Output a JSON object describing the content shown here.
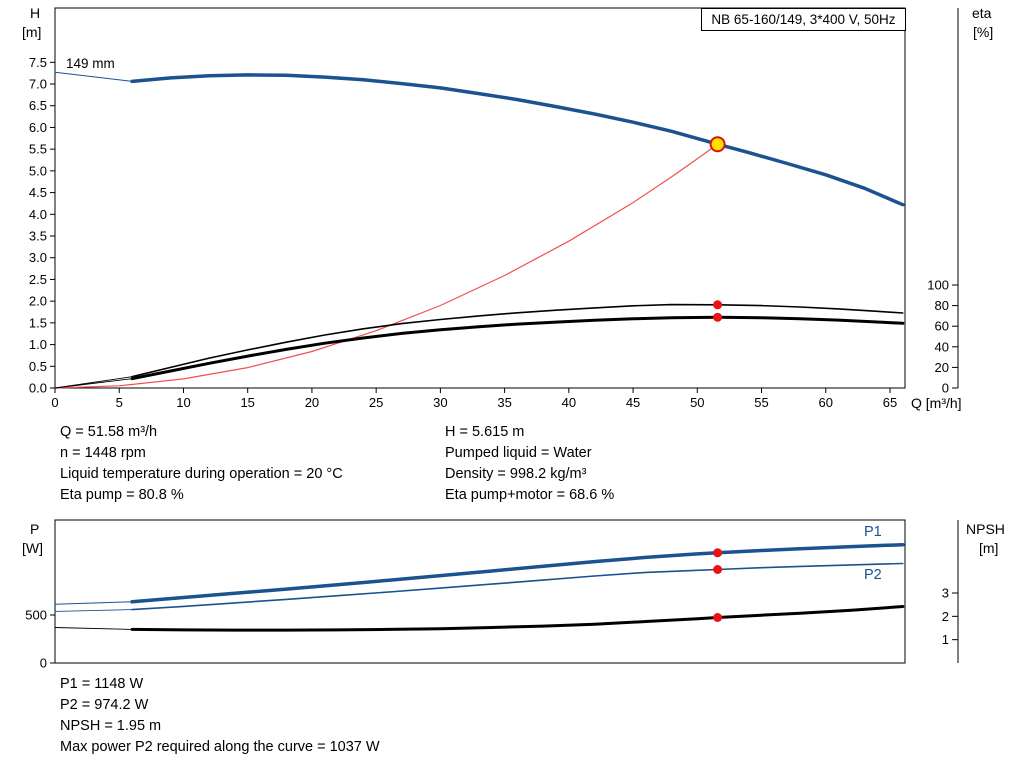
{
  "colors": {
    "curve_blue": "#1b5290",
    "curve_black": "#000000",
    "duty_line_red": "#f05050",
    "dot_red": "#ee1111",
    "duty_fill_yellow": "#ffe200",
    "duty_ring_red": "#dd1111"
  },
  "info_top": {
    "left": [
      "Q = 51.58 m³/h",
      "n = 1448 rpm",
      "Liquid temperature during operation = 20 °C",
      "Eta pump = 80.8 %"
    ],
    "right": [
      "H = 5.615 m",
      "Pumped liquid = Water",
      "Density = 998.2 kg/m³",
      "Eta pump+motor = 68.6 %"
    ]
  },
  "info_bottom": [
    "P1 = 1148 W",
    "P2 = 974.2 W",
    "NPSH = 1.95 m",
    "Max power P2 required along the curve = 1037 W"
  ],
  "chart_data": [
    {
      "type": "line",
      "id": "qh",
      "title": "NB 65-160/149, 3*400 V, 50Hz",
      "x_axis": {
        "label": "Q [m³/h]",
        "range": [
          0,
          66.2
        ],
        "ticks": [
          "0",
          "5",
          "10",
          "15",
          "20",
          "25",
          "30",
          "35",
          "40",
          "45",
          "50",
          "55",
          "60",
          "65"
        ]
      },
      "y_left": {
        "name": "H",
        "unit": "[m]",
        "range": [
          0,
          8.75
        ],
        "ticks": [
          "0.0",
          "0.5",
          "1.0",
          "1.5",
          "2.0",
          "2.5",
          "3.0",
          "3.5",
          "4.0",
          "4.5",
          "5.0",
          "5.5",
          "6.0",
          "6.5",
          "7.0",
          "7.5"
        ]
      },
      "y_right": {
        "name": "eta",
        "unit": "[%]",
        "range": [
          0,
          100
        ],
        "ticks": [
          "0",
          "20",
          "40",
          "60",
          "80",
          "100"
        ]
      },
      "grid": false,
      "annotations": [
        {
          "text": "149 mm"
        }
      ],
      "series": [
        {
          "name": "Duty line",
          "axis": "left",
          "color": "duty_line_red",
          "width": 1.2,
          "points": [
            [
              0,
              0
            ],
            [
              5,
              0.05
            ],
            [
              10,
              0.21
            ],
            [
              15,
              0.47
            ],
            [
              20,
              0.84
            ],
            [
              25,
              1.32
            ],
            [
              30,
              1.9
            ],
            [
              35,
              2.59
            ],
            [
              40,
              3.38
            ],
            [
              45,
              4.27
            ],
            [
              48,
              4.86
            ],
            [
              50,
              5.28
            ],
            [
              51.58,
              5.615
            ]
          ]
        },
        {
          "name": "Eta pump lead",
          "axis": "right",
          "color": "curve_black",
          "width": 0.9,
          "points": [
            [
              0,
              0
            ],
            [
              6,
              11
            ]
          ]
        },
        {
          "name": "Eta pump",
          "axis": "right",
          "color": "curve_black",
          "width": 1.6,
          "points": [
            [
              6,
              11
            ],
            [
              9,
              20
            ],
            [
              12,
              29
            ],
            [
              15,
              37
            ],
            [
              18,
              44.5
            ],
            [
              21,
              51.5
            ],
            [
              24,
              57.5
            ],
            [
              27,
              62.5
            ],
            [
              30,
              66.5
            ],
            [
              33,
              70
            ],
            [
              36,
              73
            ],
            [
              39,
              75.5
            ],
            [
              42,
              77.8
            ],
            [
              45,
              79.8
            ],
            [
              48,
              81.0
            ],
            [
              51.58,
              80.8
            ],
            [
              55,
              80.0
            ],
            [
              58,
              78.6
            ],
            [
              61,
              76.8
            ],
            [
              64,
              74.5
            ],
            [
              66,
              72.8
            ]
          ]
        },
        {
          "name": "Eta pump+motor lead",
          "axis": "right",
          "color": "curve_black",
          "width": 0.9,
          "points": [
            [
              0,
              0
            ],
            [
              6,
              9
            ]
          ]
        },
        {
          "name": "Eta pump+motor",
          "axis": "right",
          "color": "curve_black",
          "width": 3,
          "points": [
            [
              6,
              9
            ],
            [
              9,
              16.5
            ],
            [
              12,
              24
            ],
            [
              15,
              31
            ],
            [
              18,
              37.5
            ],
            [
              21,
              43.5
            ],
            [
              24,
              48.5
            ],
            [
              27,
              53
            ],
            [
              30,
              56.5
            ],
            [
              33,
              59.5
            ],
            [
              36,
              62
            ],
            [
              39,
              64
            ],
            [
              42,
              65.8
            ],
            [
              45,
              67.2
            ],
            [
              48,
              68.3
            ],
            [
              51.58,
              68.6
            ],
            [
              55,
              68.2
            ],
            [
              58,
              67.3
            ],
            [
              61,
              65.9
            ],
            [
              64,
              64.1
            ],
            [
              66,
              62.8
            ]
          ]
        },
        {
          "name": "H curve lead",
          "axis": "left",
          "color": "curve_blue",
          "width": 1,
          "points": [
            [
              0,
              7.27
            ],
            [
              6,
              7.06
            ]
          ]
        },
        {
          "name": "149 mm",
          "axis": "left",
          "color": "curve_blue",
          "width": 3.5,
          "points": [
            [
              6,
              7.06
            ],
            [
              9,
              7.14
            ],
            [
              12,
              7.19
            ],
            [
              15,
              7.21
            ],
            [
              18,
              7.2
            ],
            [
              21,
              7.16
            ],
            [
              24,
              7.1
            ],
            [
              27,
              7.01
            ],
            [
              30,
              6.91
            ],
            [
              33,
              6.78
            ],
            [
              36,
              6.64
            ],
            [
              39,
              6.48
            ],
            [
              42,
              6.31
            ],
            [
              45,
              6.12
            ],
            [
              48,
              5.91
            ],
            [
              51.58,
              5.615
            ],
            [
              54,
              5.42
            ],
            [
              57,
              5.17
            ],
            [
              60,
              4.91
            ],
            [
              63,
              4.6
            ],
            [
              66,
              4.22
            ]
          ]
        }
      ],
      "markers": [
        {
          "type": "duty",
          "axis": "left",
          "x": 51.58,
          "y": 5.615,
          "r": 7,
          "fill": "duty_fill_yellow",
          "stroke": "duty_ring_red"
        },
        {
          "type": "dot",
          "axis": "right",
          "x": 51.58,
          "y": 80.8,
          "r": 4.5,
          "fill": "dot_red"
        },
        {
          "type": "dot",
          "axis": "right",
          "x": 51.58,
          "y": 68.6,
          "r": 4.5,
          "fill": "dot_red"
        }
      ]
    },
    {
      "type": "line",
      "id": "power",
      "title": "",
      "x_axis": {
        "label": "",
        "range": [
          0,
          66.2
        ],
        "ticks": []
      },
      "y_left": {
        "name": "P",
        "unit": "[W]",
        "range": [
          0,
          1490
        ],
        "ticks": [
          "0",
          "500"
        ]
      },
      "y_right": {
        "name": "NPSH",
        "unit": "[m]",
        "range": [
          0,
          4.46
        ],
        "ticks": [
          "1",
          "2",
          "3"
        ]
      },
      "grid": false,
      "series": [
        {
          "name": "P2 lead",
          "axis": "left",
          "color": "curve_blue",
          "width": 0.9,
          "points": [
            [
              0,
              538
            ],
            [
              6,
              556
            ]
          ]
        },
        {
          "name": "P2",
          "axis": "left",
          "color": "curve_blue",
          "width": 1.6,
          "points": [
            [
              6,
              556
            ],
            [
              10,
              590
            ],
            [
              14,
              626
            ],
            [
              18,
              663
            ],
            [
              22,
              701
            ],
            [
              26,
              740
            ],
            [
              30,
              780
            ],
            [
              34,
              822
            ],
            [
              38,
              864
            ],
            [
              42,
              906
            ],
            [
              46,
              944
            ],
            [
              50,
              966
            ],
            [
              51.58,
              974.2
            ],
            [
              55,
              993
            ],
            [
              58,
              1006
            ],
            [
              62,
              1022
            ],
            [
              66,
              1036
            ]
          ]
        },
        {
          "name": "P1 lead",
          "axis": "left",
          "color": "curve_blue",
          "width": 1,
          "points": [
            [
              0,
              612
            ],
            [
              6,
              638
            ]
          ]
        },
        {
          "name": "P1",
          "axis": "left",
          "color": "curve_blue",
          "width": 3.5,
          "points": [
            [
              6,
              638
            ],
            [
              10,
              682
            ],
            [
              14,
              726
            ],
            [
              18,
              770
            ],
            [
              22,
              815
            ],
            [
              26,
              862
            ],
            [
              30,
              910
            ],
            [
              34,
              958
            ],
            [
              38,
              1008
            ],
            [
              42,
              1056
            ],
            [
              46,
              1100
            ],
            [
              50,
              1136
            ],
            [
              51.58,
              1148
            ],
            [
              55,
              1172
            ],
            [
              58,
              1190
            ],
            [
              62,
              1212
            ],
            [
              66,
              1232
            ]
          ]
        },
        {
          "name": "NPSH lead",
          "axis": "right",
          "color": "curve_black",
          "width": 0.9,
          "points": [
            [
              0,
              1.52
            ],
            [
              6,
              1.44
            ]
          ]
        },
        {
          "name": "NPSH",
          "axis": "right",
          "color": "curve_black",
          "width": 3,
          "points": [
            [
              6,
              1.44
            ],
            [
              10,
              1.42
            ],
            [
              14,
              1.41
            ],
            [
              18,
              1.41
            ],
            [
              22,
              1.42
            ],
            [
              26,
              1.44
            ],
            [
              30,
              1.47
            ],
            [
              34,
              1.52
            ],
            [
              38,
              1.58
            ],
            [
              42,
              1.66
            ],
            [
              46,
              1.78
            ],
            [
              50,
              1.9
            ],
            [
              51.58,
              1.95
            ],
            [
              55,
              2.05
            ],
            [
              58,
              2.13
            ],
            [
              62,
              2.26
            ],
            [
              66,
              2.42
            ]
          ]
        }
      ],
      "markers": [
        {
          "type": "dot",
          "axis": "left",
          "x": 51.58,
          "y": 1148,
          "r": 4.5,
          "fill": "dot_red"
        },
        {
          "type": "dot",
          "axis": "left",
          "x": 51.58,
          "y": 974.2,
          "r": 4.5,
          "fill": "dot_red"
        },
        {
          "type": "dot",
          "axis": "right",
          "x": 51.58,
          "y": 1.95,
          "r": 4.5,
          "fill": "dot_red"
        }
      ]
    }
  ]
}
